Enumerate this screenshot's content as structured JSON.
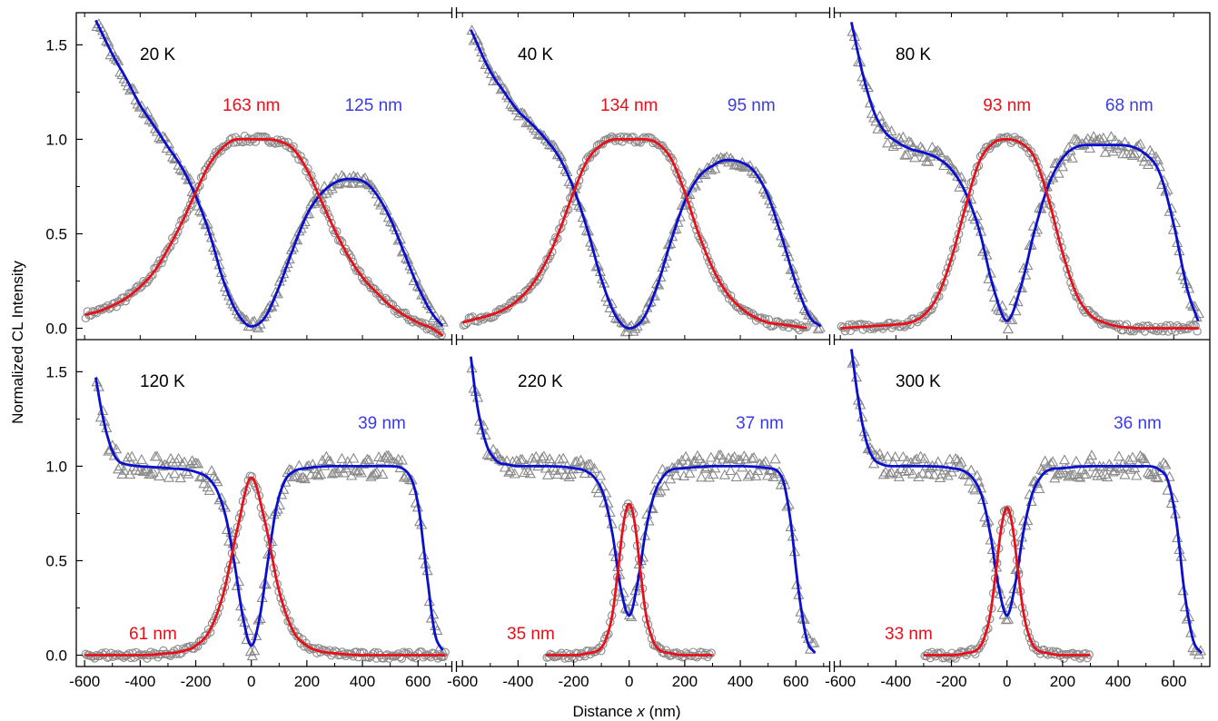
{
  "chart_data": {
    "type": "scatter",
    "ylabel": "Normalized CL Intensity",
    "xlabel": "Distance x (nm)",
    "xlabel_prefix": "Distance ",
    "xlabel_var": "x",
    "xlabel_unit": " (nm)",
    "grid": false,
    "layout": "2 rows x 3 columns, shared axes",
    "x_ticks": [
      "-600",
      "-400",
      "-200",
      "0",
      "200",
      "400",
      "600"
    ],
    "y_ticks": [
      "0.0",
      "0.5",
      "1.0",
      "1.5"
    ],
    "xlim": [
      -630,
      730
    ],
    "ylim": [
      -0.06,
      1.67
    ],
    "colors": {
      "red_fit": "#e8101a",
      "blue_fit": "#0a0fcf",
      "blue_label": "#3b3be6",
      "markers": "#8a8a8a"
    },
    "panels": [
      {
        "temperature": "20 K",
        "red_label": "163 nm",
        "blue_label": "125 nm",
        "red_label_pos": "upper",
        "blue_label_pos": "upper",
        "circles_fit": {
          "x": [
            -600,
            -550,
            -500,
            -450,
            -400,
            -350,
            -300,
            -250,
            -200,
            -150,
            -100,
            -50,
            0,
            50,
            100,
            150,
            200,
            250,
            300,
            350,
            400,
            450,
            500,
            550,
            600,
            650,
            690
          ],
          "y": [
            0.07,
            0.09,
            0.12,
            0.16,
            0.22,
            0.3,
            0.42,
            0.56,
            0.72,
            0.87,
            0.96,
            1.0,
            1.0,
            1.0,
            0.99,
            0.95,
            0.84,
            0.68,
            0.52,
            0.38,
            0.27,
            0.19,
            0.12,
            0.07,
            0.03,
            0.0,
            -0.04
          ]
        },
        "triangles_fit": {
          "x": [
            -560,
            -500,
            -450,
            -400,
            -350,
            -300,
            -250,
            -200,
            -150,
            -100,
            -50,
            0,
            50,
            100,
            150,
            200,
            250,
            300,
            350,
            400,
            450,
            500,
            550,
            600,
            650,
            690
          ],
          "y": [
            1.63,
            1.45,
            1.32,
            1.18,
            1.07,
            0.96,
            0.85,
            0.7,
            0.5,
            0.25,
            0.08,
            0.01,
            0.06,
            0.22,
            0.42,
            0.6,
            0.71,
            0.77,
            0.79,
            0.78,
            0.71,
            0.58,
            0.4,
            0.22,
            0.08,
            0.01
          ]
        }
      },
      {
        "temperature": "40 K",
        "red_label": "134 nm",
        "blue_label": "95 nm",
        "red_label_pos": "upper",
        "blue_label_pos": "upper",
        "circles_fit": {
          "x": [
            -600,
            -550,
            -500,
            -450,
            -400,
            -350,
            -300,
            -250,
            -200,
            -150,
            -100,
            -50,
            0,
            50,
            100,
            150,
            200,
            250,
            300,
            350,
            400,
            450,
            500,
            550,
            600,
            640
          ],
          "y": [
            0.03,
            0.05,
            0.07,
            0.1,
            0.15,
            0.23,
            0.35,
            0.52,
            0.72,
            0.89,
            0.97,
            1.0,
            1.0,
            1.0,
            0.98,
            0.9,
            0.72,
            0.5,
            0.32,
            0.19,
            0.11,
            0.06,
            0.03,
            0.02,
            0.01,
            0.0
          ]
        },
        "triangles_fit": {
          "x": [
            -570,
            -500,
            -450,
            -400,
            -350,
            -300,
            -250,
            -200,
            -150,
            -100,
            -50,
            0,
            50,
            100,
            150,
            200,
            250,
            300,
            350,
            400,
            450,
            500,
            550,
            600,
            650,
            690
          ],
          "y": [
            1.58,
            1.36,
            1.25,
            1.15,
            1.08,
            1.0,
            0.9,
            0.74,
            0.52,
            0.26,
            0.07,
            0.0,
            0.05,
            0.22,
            0.46,
            0.67,
            0.8,
            0.86,
            0.89,
            0.88,
            0.83,
            0.7,
            0.48,
            0.24,
            0.06,
            0.01
          ]
        }
      },
      {
        "temperature": "80 K",
        "red_label": "93 nm",
        "blue_label": "68 nm",
        "red_label_pos": "upper",
        "blue_label_pos": "upper",
        "circles_fit": {
          "x": [
            -600,
            -500,
            -400,
            -350,
            -300,
            -250,
            -200,
            -150,
            -100,
            -50,
            0,
            50,
            100,
            150,
            200,
            250,
            300,
            350,
            400,
            500,
            600,
            690
          ],
          "y": [
            0.0,
            0.01,
            0.02,
            0.03,
            0.07,
            0.17,
            0.37,
            0.64,
            0.88,
            0.98,
            1.0,
            0.98,
            0.9,
            0.68,
            0.4,
            0.18,
            0.07,
            0.03,
            0.01,
            0.0,
            0.0,
            0.0
          ]
        },
        "triangles_fit": {
          "x": [
            -560,
            -520,
            -480,
            -440,
            -400,
            -350,
            -300,
            -250,
            -200,
            -150,
            -100,
            -50,
            0,
            50,
            100,
            150,
            200,
            250,
            300,
            400,
            500,
            550,
            600,
            650,
            690
          ],
          "y": [
            1.62,
            1.35,
            1.15,
            1.04,
            0.99,
            0.95,
            0.93,
            0.9,
            0.84,
            0.72,
            0.52,
            0.22,
            0.04,
            0.22,
            0.52,
            0.76,
            0.9,
            0.96,
            0.97,
            0.97,
            0.92,
            0.82,
            0.55,
            0.2,
            0.03
          ]
        }
      },
      {
        "temperature": "120 K",
        "red_label": "61 nm",
        "blue_label": "39 nm",
        "red_label_pos": "lower",
        "blue_label_pos": "upper",
        "circles_fit": {
          "x": [
            -600,
            -500,
            -400,
            -300,
            -250,
            -200,
            -150,
            -100,
            -50,
            0,
            50,
            100,
            150,
            200,
            250,
            300,
            400,
            500,
            600,
            700
          ],
          "y": [
            0.0,
            0.0,
            0.0,
            0.01,
            0.02,
            0.05,
            0.13,
            0.33,
            0.67,
            0.94,
            0.7,
            0.34,
            0.13,
            0.05,
            0.02,
            0.01,
            0.0,
            0.0,
            0.0,
            0.0
          ]
        },
        "triangles_fit": {
          "x": [
            -560,
            -540,
            -520,
            -500,
            -480,
            -450,
            -400,
            -300,
            -200,
            -150,
            -120,
            -90,
            -60,
            -30,
            0,
            30,
            60,
            90,
            120,
            150,
            200,
            300,
            400,
            500,
            560,
            600,
            630,
            660,
            690
          ],
          "y": [
            1.47,
            1.3,
            1.17,
            1.08,
            1.03,
            1.01,
            1.0,
            0.99,
            0.97,
            0.93,
            0.86,
            0.72,
            0.48,
            0.2,
            0.05,
            0.2,
            0.5,
            0.78,
            0.92,
            0.97,
            0.99,
            1.0,
            1.0,
            1.0,
            0.97,
            0.8,
            0.45,
            0.12,
            0.02
          ]
        }
      },
      {
        "temperature": "220 K",
        "red_label": "35 nm",
        "blue_label": "37 nm",
        "red_label_pos": "lower",
        "blue_label_pos": "upper",
        "circles_fit": {
          "x": [
            -300,
            -200,
            -150,
            -100,
            -80,
            -60,
            -40,
            -20,
            0,
            20,
            40,
            60,
            80,
            100,
            150,
            200,
            300
          ],
          "y": [
            0.0,
            0.0,
            0.01,
            0.04,
            0.1,
            0.22,
            0.45,
            0.7,
            0.8,
            0.7,
            0.45,
            0.22,
            0.1,
            0.04,
            0.01,
            0.0,
            0.0
          ]
        },
        "triangles_fit": {
          "x": [
            -570,
            -550,
            -530,
            -510,
            -490,
            -470,
            -440,
            -400,
            -300,
            -200,
            -150,
            -120,
            -90,
            -60,
            -30,
            0,
            30,
            60,
            90,
            120,
            150,
            200,
            300,
            400,
            500,
            550,
            580,
            610,
            640,
            670
          ],
          "y": [
            1.58,
            1.35,
            1.2,
            1.1,
            1.05,
            1.02,
            1.01,
            1.0,
            1.0,
            0.99,
            0.97,
            0.93,
            0.84,
            0.64,
            0.35,
            0.21,
            0.38,
            0.66,
            0.85,
            0.94,
            0.98,
            0.99,
            1.0,
            1.0,
            0.99,
            0.94,
            0.72,
            0.34,
            0.08,
            0.01
          ]
        }
      },
      {
        "temperature": "300 K",
        "red_label": "33 nm",
        "blue_label": "36 nm",
        "red_label_pos": "lower",
        "blue_label_pos": "upper",
        "circles_fit": {
          "x": [
            -300,
            -200,
            -150,
            -100,
            -80,
            -60,
            -40,
            -20,
            0,
            20,
            40,
            60,
            80,
            100,
            150,
            200,
            300
          ],
          "y": [
            0.0,
            0.0,
            0.01,
            0.04,
            0.1,
            0.22,
            0.44,
            0.68,
            0.78,
            0.68,
            0.44,
            0.22,
            0.1,
            0.04,
            0.01,
            0.0,
            0.0
          ]
        },
        "triangles_fit": {
          "x": [
            -560,
            -540,
            -520,
            -500,
            -480,
            -450,
            -400,
            -300,
            -200,
            -150,
            -120,
            -90,
            -60,
            -30,
            0,
            30,
            60,
            90,
            120,
            150,
            200,
            300,
            400,
            500,
            550,
            580,
            610,
            640,
            670,
            700
          ],
          "y": [
            1.62,
            1.4,
            1.22,
            1.1,
            1.04,
            1.01,
            1.0,
            1.0,
            0.99,
            0.97,
            0.93,
            0.84,
            0.64,
            0.36,
            0.21,
            0.38,
            0.66,
            0.85,
            0.94,
            0.98,
            0.99,
            1.0,
            1.0,
            1.0,
            0.98,
            0.92,
            0.7,
            0.32,
            0.08,
            0.01
          ]
        }
      }
    ]
  }
}
